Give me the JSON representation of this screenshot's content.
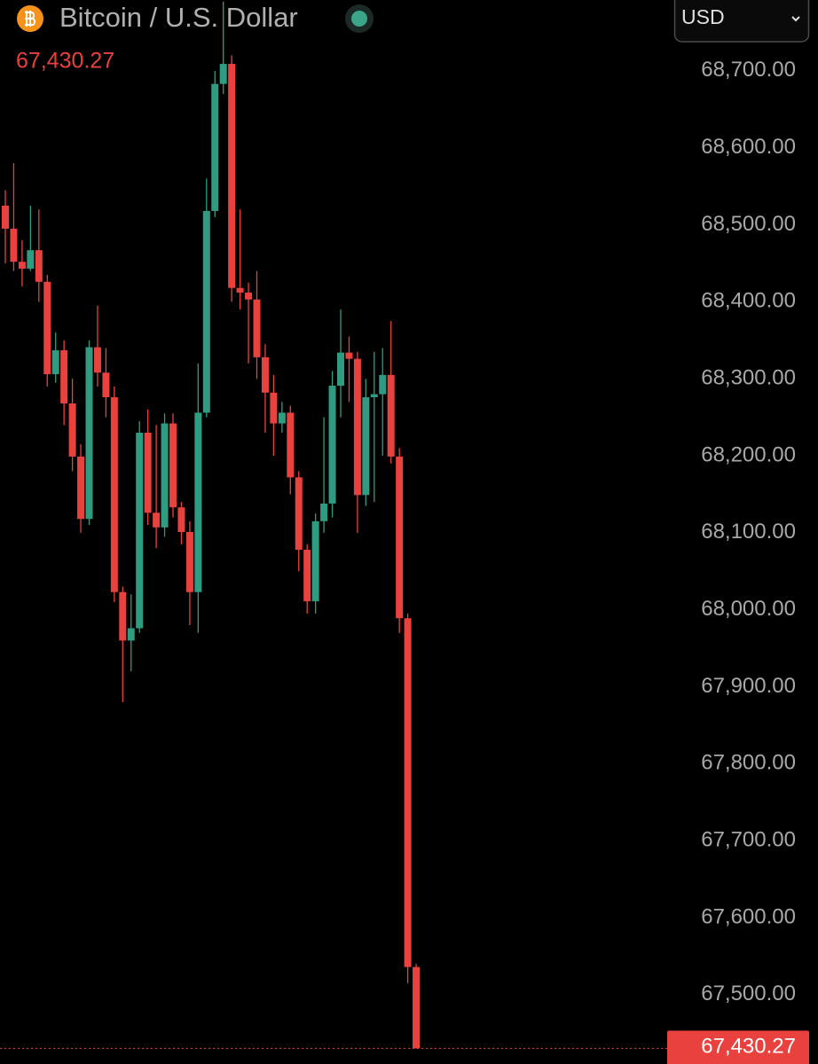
{
  "chart_data": {
    "type": "candlestick",
    "title": "Bitcoin / U.S. Dollar",
    "currency": "USD",
    "last_price": {
      "value": 67430.27,
      "label": "67,430.27"
    },
    "up_color": "#2f9c81",
    "down_color": "#e8413e",
    "grid": false,
    "ylim": [
      67410,
      68792
    ],
    "yticks": [
      {
        "value": 68700,
        "label": "68,700.00"
      },
      {
        "value": 68600,
        "label": "68,600.00"
      },
      {
        "value": 68500,
        "label": "68,500.00"
      },
      {
        "value": 68400,
        "label": "68,400.00"
      },
      {
        "value": 68300,
        "label": "68,300.00"
      },
      {
        "value": 68200,
        "label": "68,200.00"
      },
      {
        "value": 68100,
        "label": "68,100.00"
      },
      {
        "value": 68000,
        "label": "68,000.00"
      },
      {
        "value": 67900,
        "label": "67,900.00"
      },
      {
        "value": 67800,
        "label": "67,800.00"
      },
      {
        "value": 67700,
        "label": "67,700.00"
      },
      {
        "value": 67600,
        "label": "67,600.00"
      },
      {
        "value": 67500,
        "label": "67,500.00"
      }
    ],
    "open": [
      68525,
      68495,
      68452,
      68443,
      68467,
      68426,
      68306,
      68337,
      68268,
      68199,
      68118,
      68341,
      68308,
      68276,
      68023,
      67960,
      67976,
      68230,
      68126,
      68107,
      68242,
      68133,
      68101,
      68023,
      68256,
      68518,
      68683,
      68709,
      68418,
      68412,
      68403,
      68328,
      68282,
      68242,
      68256,
      68172,
      68078,
      68011,
      68115,
      68138,
      68291,
      68334,
      68326,
      68149,
      68276,
      68280,
      68305,
      68199,
      67989,
      67536
    ],
    "high": [
      68545,
      68580,
      68480,
      68525,
      68520,
      68435,
      68360,
      68350,
      68300,
      68215,
      68350,
      68395,
      68340,
      68290,
      68030,
      68020,
      68245,
      68260,
      68240,
      68255,
      68255,
      68140,
      68115,
      68320,
      68560,
      68700,
      68790,
      68720,
      68520,
      68425,
      68440,
      68345,
      68305,
      68270,
      68265,
      68180,
      68085,
      68125,
      68250,
      68310,
      68390,
      68355,
      68335,
      68300,
      68335,
      68340,
      68375,
      68210,
      67995,
      67540
    ],
    "low": [
      68450,
      68440,
      68420,
      68440,
      68400,
      68290,
      68295,
      68240,
      68180,
      68100,
      68110,
      68290,
      68250,
      68010,
      67880,
      67920,
      67970,
      68110,
      68080,
      68095,
      68120,
      68085,
      67980,
      67970,
      68250,
      68510,
      68670,
      68400,
      68390,
      68320,
      68300,
      68230,
      68200,
      68230,
      68150,
      68050,
      67995,
      67995,
      68100,
      68120,
      68250,
      68270,
      68100,
      68135,
      68140,
      68200,
      68190,
      67970,
      67515,
      67430.27
    ],
    "close": [
      68495,
      68452,
      68443,
      68467,
      68426,
      68306,
      68337,
      68268,
      68199,
      68118,
      68341,
      68308,
      68276,
      68023,
      67960,
      67976,
      68230,
      68126,
      68107,
      68242,
      68133,
      68101,
      68023,
      68256,
      68518,
      68683,
      68709,
      68418,
      68412,
      68403,
      68328,
      68282,
      68242,
      68256,
      68172,
      68078,
      68011,
      68115,
      68138,
      68291,
      68334,
      68326,
      68149,
      68276,
      68280,
      68305,
      68199,
      67989,
      67536,
      67430.27
    ]
  }
}
